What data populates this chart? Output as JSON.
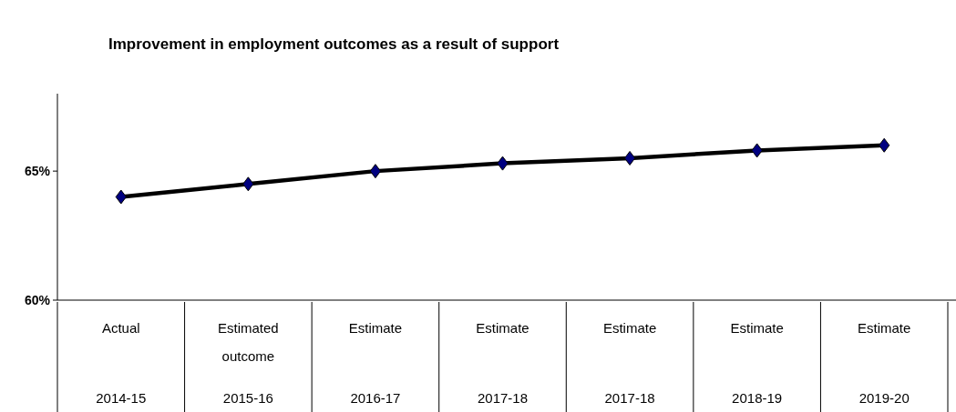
{
  "chart_data": {
    "type": "line",
    "title": "Improvement in employment outcomes as a result of support",
    "categories": [
      "Actual\n2014-15",
      "Estimated outcome\n2015-16",
      "Estimate\n2016-17",
      "Estimate\n2017-18",
      "Estimate\n2017-18",
      "Estimate\n2018-19",
      "Estimate\n2019-20"
    ],
    "series": [
      {
        "color": "#000000",
        "values": [
          64,
          64.5,
          65,
          65.3,
          65.5,
          65.8,
          66
        ]
      }
    ],
    "ylim": [
      60,
      68
    ],
    "yticks": [
      {
        "value": 60,
        "label": "60%"
      },
      {
        "value": 65,
        "label": "65%"
      }
    ],
    "marker": "diamond",
    "line_style": "solid",
    "grid": false
  }
}
